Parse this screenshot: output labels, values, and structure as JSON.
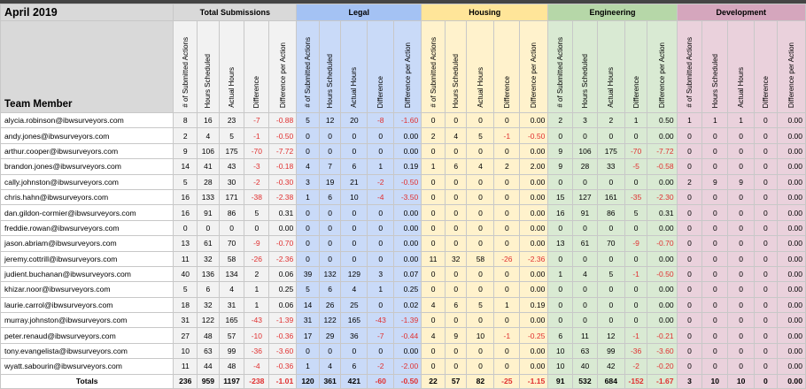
{
  "month": "April 2019",
  "member_header": "Team Member",
  "totals_label": "Totals",
  "metric_headers": [
    "# of Submitted Actions",
    "Hours Scheduled",
    "Actual Hours",
    "Difference",
    "Difference per Action"
  ],
  "groups": [
    {
      "key": "total",
      "name": "Total Submissions",
      "header_color": "#d9d9d9",
      "cell_color": "#f2f2f2"
    },
    {
      "key": "legal",
      "name": "Legal",
      "header_color": "#a4c2f4",
      "cell_color": "#c9daf8"
    },
    {
      "key": "housing",
      "name": "Housing",
      "header_color": "#ffe599",
      "cell_color": "#fff2cc"
    },
    {
      "key": "eng",
      "name": "Engineering",
      "header_color": "#b6d7a8",
      "cell_color": "#d9ead3"
    },
    {
      "key": "dev",
      "name": "Development",
      "header_color": "#d5a6bd",
      "cell_color": "#ead1dc"
    }
  ],
  "rows": [
    {
      "email": "alycia.robinson@ibwsurveyors.com",
      "values": [
        [
          "8",
          "16",
          "23",
          "-7",
          "-0.88"
        ],
        [
          "5",
          "12",
          "20",
          "-8",
          "-1.60"
        ],
        [
          "0",
          "0",
          "0",
          "0",
          "0.00"
        ],
        [
          "2",
          "3",
          "2",
          "1",
          "0.50"
        ],
        [
          "1",
          "1",
          "1",
          "0",
          "0.00"
        ]
      ]
    },
    {
      "email": "andy.jones@ibwsurveyors.com",
      "values": [
        [
          "2",
          "4",
          "5",
          "-1",
          "-0.50"
        ],
        [
          "0",
          "0",
          "0",
          "0",
          "0.00"
        ],
        [
          "2",
          "4",
          "5",
          "-1",
          "-0.50"
        ],
        [
          "0",
          "0",
          "0",
          "0",
          "0.00"
        ],
        [
          "0",
          "0",
          "0",
          "0",
          "0.00"
        ]
      ]
    },
    {
      "email": "arthur.cooper@ibwsurveyors.com",
      "values": [
        [
          "9",
          "106",
          "175",
          "-70",
          "-7.72"
        ],
        [
          "0",
          "0",
          "0",
          "0",
          "0.00"
        ],
        [
          "0",
          "0",
          "0",
          "0",
          "0.00"
        ],
        [
          "9",
          "106",
          "175",
          "-70",
          "-7.72"
        ],
        [
          "0",
          "0",
          "0",
          "0",
          "0.00"
        ]
      ]
    },
    {
      "email": "brandon.jones@ibwsurveyors.com",
      "values": [
        [
          "14",
          "41",
          "43",
          "-3",
          "-0.18"
        ],
        [
          "4",
          "7",
          "6",
          "1",
          "0.19"
        ],
        [
          "1",
          "6",
          "4",
          "2",
          "2.00"
        ],
        [
          "9",
          "28",
          "33",
          "-5",
          "-0.58"
        ],
        [
          "0",
          "0",
          "0",
          "0",
          "0.00"
        ]
      ]
    },
    {
      "email": "cally.johnston@ibwsurveyors.com",
      "values": [
        [
          "5",
          "28",
          "30",
          "-2",
          "-0.30"
        ],
        [
          "3",
          "19",
          "21",
          "-2",
          "-0.50"
        ],
        [
          "0",
          "0",
          "0",
          "0",
          "0.00"
        ],
        [
          "0",
          "0",
          "0",
          "0",
          "0.00"
        ],
        [
          "2",
          "9",
          "9",
          "0",
          "0.00"
        ]
      ]
    },
    {
      "email": "chris.hahn@ibwsurveyors.com",
      "values": [
        [
          "16",
          "133",
          "171",
          "-38",
          "-2.38"
        ],
        [
          "1",
          "6",
          "10",
          "-4",
          "-3.50"
        ],
        [
          "0",
          "0",
          "0",
          "0",
          "0.00"
        ],
        [
          "15",
          "127",
          "161",
          "-35",
          "-2.30"
        ],
        [
          "0",
          "0",
          "0",
          "0",
          "0.00"
        ]
      ]
    },
    {
      "email": "dan.gildon-cormier@ibwsurveyors.com",
      "values": [
        [
          "16",
          "91",
          "86",
          "5",
          "0.31"
        ],
        [
          "0",
          "0",
          "0",
          "0",
          "0.00"
        ],
        [
          "0",
          "0",
          "0",
          "0",
          "0.00"
        ],
        [
          "16",
          "91",
          "86",
          "5",
          "0.31"
        ],
        [
          "0",
          "0",
          "0",
          "0",
          "0.00"
        ]
      ]
    },
    {
      "email": "freddie.rowan@ibwsurveyors.com",
      "values": [
        [
          "0",
          "0",
          "0",
          "0",
          "0.00"
        ],
        [
          "0",
          "0",
          "0",
          "0",
          "0.00"
        ],
        [
          "0",
          "0",
          "0",
          "0",
          "0.00"
        ],
        [
          "0",
          "0",
          "0",
          "0",
          "0.00"
        ],
        [
          "0",
          "0",
          "0",
          "0",
          "0.00"
        ]
      ]
    },
    {
      "email": "jason.abriam@ibwsurveyors.com",
      "values": [
        [
          "13",
          "61",
          "70",
          "-9",
          "-0.70"
        ],
        [
          "0",
          "0",
          "0",
          "0",
          "0.00"
        ],
        [
          "0",
          "0",
          "0",
          "0",
          "0.00"
        ],
        [
          "13",
          "61",
          "70",
          "-9",
          "-0.70"
        ],
        [
          "0",
          "0",
          "0",
          "0",
          "0.00"
        ]
      ]
    },
    {
      "email": "jeremy.cottrill@ibwsurveyors.com",
      "values": [
        [
          "11",
          "32",
          "58",
          "-26",
          "-2.36"
        ],
        [
          "0",
          "0",
          "0",
          "0",
          "0.00"
        ],
        [
          "11",
          "32",
          "58",
          "-26",
          "-2.36"
        ],
        [
          "0",
          "0",
          "0",
          "0",
          "0.00"
        ],
        [
          "0",
          "0",
          "0",
          "0",
          "0.00"
        ]
      ]
    },
    {
      "email": "judient.buchanan@ibwsurveyors.com",
      "values": [
        [
          "40",
          "136",
          "134",
          "2",
          "0.06"
        ],
        [
          "39",
          "132",
          "129",
          "3",
          "0.07"
        ],
        [
          "0",
          "0",
          "0",
          "0",
          "0.00"
        ],
        [
          "1",
          "4",
          "5",
          "-1",
          "-0.50"
        ],
        [
          "0",
          "0",
          "0",
          "0",
          "0.00"
        ]
      ]
    },
    {
      "email": "khizar.noor@ibwsurveyors.com",
      "values": [
        [
          "5",
          "6",
          "4",
          "1",
          "0.25"
        ],
        [
          "5",
          "6",
          "4",
          "1",
          "0.25"
        ],
        [
          "0",
          "0",
          "0",
          "0",
          "0.00"
        ],
        [
          "0",
          "0",
          "0",
          "0",
          "0.00"
        ],
        [
          "0",
          "0",
          "0",
          "0",
          "0.00"
        ]
      ]
    },
    {
      "email": "laurie.carrol@ibwsurveyors.com",
      "values": [
        [
          "18",
          "32",
          "31",
          "1",
          "0.06"
        ],
        [
          "14",
          "26",
          "25",
          "0",
          "0.02"
        ],
        [
          "4",
          "6",
          "5",
          "1",
          "0.19"
        ],
        [
          "0",
          "0",
          "0",
          "0",
          "0.00"
        ],
        [
          "0",
          "0",
          "0",
          "0",
          "0.00"
        ]
      ]
    },
    {
      "email": "murray.johnston@ibwsurveyors.com",
      "values": [
        [
          "31",
          "122",
          "165",
          "-43",
          "-1.39"
        ],
        [
          "31",
          "122",
          "165",
          "-43",
          "-1.39"
        ],
        [
          "0",
          "0",
          "0",
          "0",
          "0.00"
        ],
        [
          "0",
          "0",
          "0",
          "0",
          "0.00"
        ],
        [
          "0",
          "0",
          "0",
          "0",
          "0.00"
        ]
      ]
    },
    {
      "email": "peter.renaud@ibwsurveyors.com",
      "values": [
        [
          "27",
          "48",
          "57",
          "-10",
          "-0.36"
        ],
        [
          "17",
          "29",
          "36",
          "-7",
          "-0.44"
        ],
        [
          "4",
          "9",
          "10",
          "-1",
          "-0.25"
        ],
        [
          "6",
          "11",
          "12",
          "-1",
          "-0.21"
        ],
        [
          "0",
          "0",
          "0",
          "0",
          "0.00"
        ]
      ]
    },
    {
      "email": "tony.evangelista@ibwsurveyors.com",
      "values": [
        [
          "10",
          "63",
          "99",
          "-36",
          "-3.60"
        ],
        [
          "0",
          "0",
          "0",
          "0",
          "0.00"
        ],
        [
          "0",
          "0",
          "0",
          "0",
          "0.00"
        ],
        [
          "10",
          "63",
          "99",
          "-36",
          "-3.60"
        ],
        [
          "0",
          "0",
          "0",
          "0",
          "0.00"
        ]
      ]
    },
    {
      "email": "wyatt.sabourin@ibwsurveyors.com",
      "values": [
        [
          "11",
          "44",
          "48",
          "-4",
          "-0.36"
        ],
        [
          "1",
          "4",
          "6",
          "-2",
          "-2.00"
        ],
        [
          "0",
          "0",
          "0",
          "0",
          "0.00"
        ],
        [
          "10",
          "40",
          "42",
          "-2",
          "-0.20"
        ],
        [
          "0",
          "0",
          "0",
          "0",
          "0.00"
        ]
      ]
    }
  ],
  "totals": [
    [
      "236",
      "959",
      "1197",
      "-238",
      "-1.01"
    ],
    [
      "120",
      "361",
      "421",
      "-60",
      "-0.50"
    ],
    [
      "22",
      "57",
      "82",
      "-25",
      "-1.15"
    ],
    [
      "91",
      "532",
      "684",
      "-152",
      "-1.67"
    ],
    [
      "3",
      "10",
      "10",
      "0",
      "0.00"
    ]
  ],
  "negative_color": "#e03030"
}
